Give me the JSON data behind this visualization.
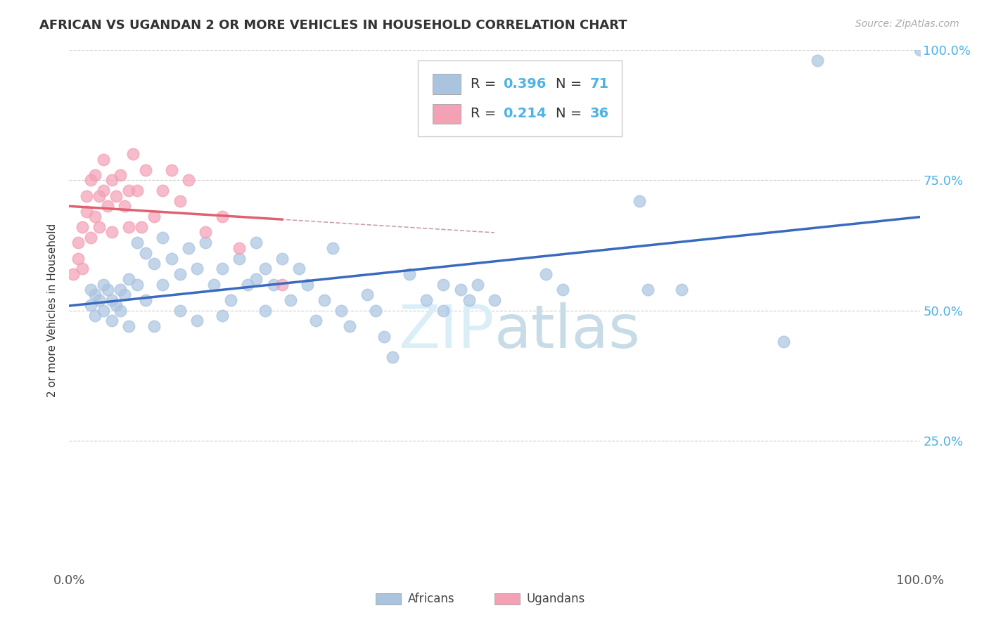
{
  "title": "AFRICAN VS UGANDAN 2 OR MORE VEHICLES IN HOUSEHOLD CORRELATION CHART",
  "source": "Source: ZipAtlas.com",
  "ylabel": "2 or more Vehicles in Household",
  "xlim": [
    0,
    1.0
  ],
  "ylim": [
    0,
    1.0
  ],
  "legend_r_african": "0.396",
  "legend_n_african": "71",
  "legend_r_ugandan": "0.214",
  "legend_n_ugandan": "36",
  "african_color": "#aac4e0",
  "ugandan_color": "#f4a0b5",
  "trendline_african_color": "#3a6abf",
  "trendline_ugandan_color": "#e06070",
  "dashed_color": "#c8a0b0",
  "watermark_color": "#daeef8",
  "background_color": "#ffffff",
  "grid_color": "#cccccc",
  "right_tick_color": "#4db3e6",
  "label_color": "#555555",
  "africans_x": [
    0.025,
    0.025,
    0.03,
    0.03,
    0.035,
    0.04,
    0.04,
    0.045,
    0.05,
    0.05,
    0.055,
    0.06,
    0.06,
    0.065,
    0.07,
    0.07,
    0.08,
    0.08,
    0.09,
    0.09,
    0.1,
    0.1,
    0.11,
    0.11,
    0.12,
    0.13,
    0.13,
    0.14,
    0.15,
    0.15,
    0.16,
    0.17,
    0.18,
    0.18,
    0.19,
    0.2,
    0.21,
    0.22,
    0.22,
    0.23,
    0.23,
    0.24,
    0.25,
    0.26,
    0.27,
    0.28,
    0.29,
    0.3,
    0.31,
    0.32,
    0.33,
    0.35,
    0.36,
    0.37,
    0.38,
    0.4,
    0.42,
    0.44,
    0.44,
    0.46,
    0.47,
    0.48,
    0.5,
    0.56,
    0.58,
    0.67,
    0.68,
    0.72,
    0.84,
    0.88,
    1.0
  ],
  "africans_y": [
    0.54,
    0.51,
    0.53,
    0.49,
    0.52,
    0.55,
    0.5,
    0.54,
    0.52,
    0.48,
    0.51,
    0.54,
    0.5,
    0.53,
    0.56,
    0.47,
    0.63,
    0.55,
    0.61,
    0.52,
    0.59,
    0.47,
    0.64,
    0.55,
    0.6,
    0.57,
    0.5,
    0.62,
    0.58,
    0.48,
    0.63,
    0.55,
    0.58,
    0.49,
    0.52,
    0.6,
    0.55,
    0.63,
    0.56,
    0.58,
    0.5,
    0.55,
    0.6,
    0.52,
    0.58,
    0.55,
    0.48,
    0.52,
    0.62,
    0.5,
    0.47,
    0.53,
    0.5,
    0.45,
    0.41,
    0.57,
    0.52,
    0.55,
    0.5,
    0.54,
    0.52,
    0.55,
    0.52,
    0.57,
    0.54,
    0.71,
    0.54,
    0.54,
    0.44,
    0.98,
    1.0
  ],
  "ugandans_x": [
    0.005,
    0.01,
    0.01,
    0.015,
    0.015,
    0.02,
    0.02,
    0.025,
    0.025,
    0.03,
    0.03,
    0.035,
    0.035,
    0.04,
    0.04,
    0.045,
    0.05,
    0.05,
    0.055,
    0.06,
    0.065,
    0.07,
    0.07,
    0.075,
    0.08,
    0.085,
    0.09,
    0.1,
    0.11,
    0.12,
    0.13,
    0.14,
    0.16,
    0.18,
    0.2,
    0.25
  ],
  "ugandans_y": [
    0.57,
    0.6,
    0.63,
    0.66,
    0.58,
    0.69,
    0.72,
    0.64,
    0.75,
    0.68,
    0.76,
    0.72,
    0.66,
    0.73,
    0.79,
    0.7,
    0.75,
    0.65,
    0.72,
    0.76,
    0.7,
    0.73,
    0.66,
    0.8,
    0.73,
    0.66,
    0.77,
    0.68,
    0.73,
    0.77,
    0.71,
    0.75,
    0.65,
    0.68,
    0.62,
    0.55
  ]
}
